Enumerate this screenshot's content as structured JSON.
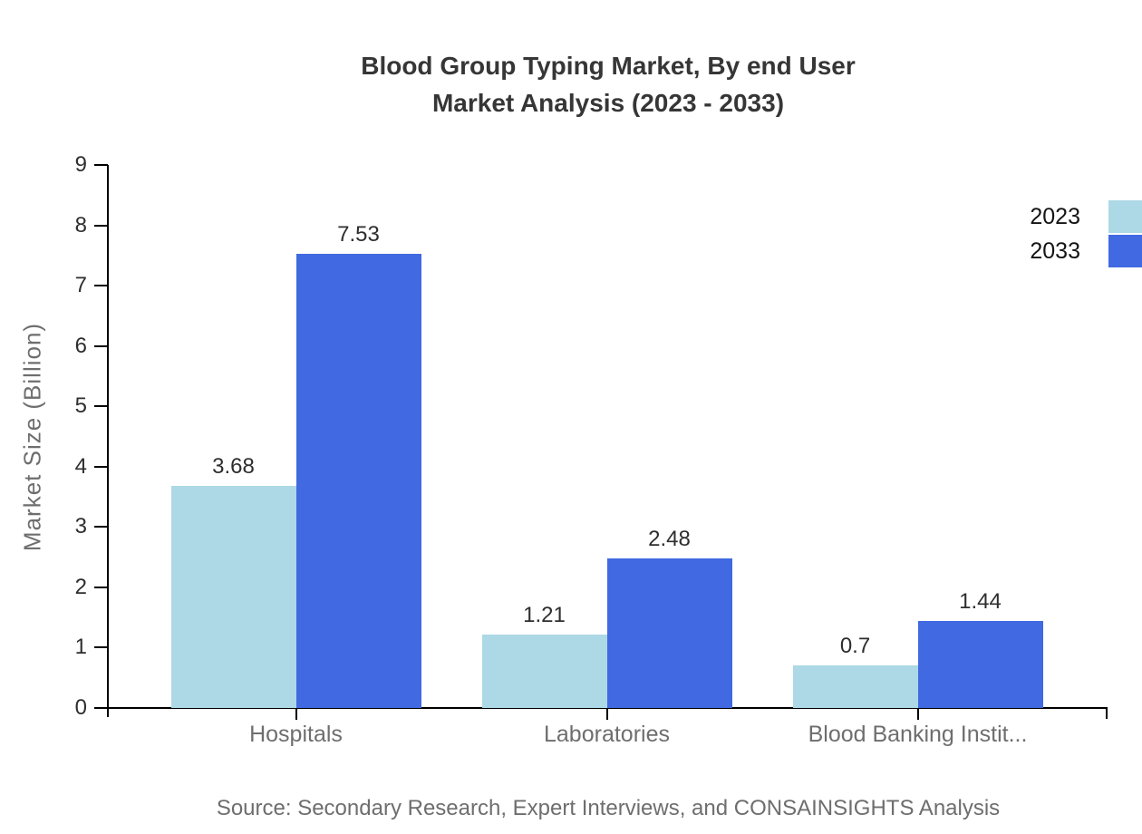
{
  "chart_data": {
    "type": "bar",
    "title_line1": "Blood Group Typing Market, By end User",
    "title_line2": "Market Analysis (2023 - 2033)",
    "categories": [
      "Hospitals",
      "Laboratories",
      "Blood Banking Instit..."
    ],
    "series": [
      {
        "name": "2023",
        "color": "#ADD8E6",
        "values": [
          3.68,
          1.21,
          0.7
        ]
      },
      {
        "name": "2033",
        "color": "#4169E1",
        "values": [
          7.53,
          2.48,
          1.44
        ]
      }
    ],
    "xlabel": "",
    "ylabel": "Market Size (Billion)",
    "ylim": [
      0,
      9
    ],
    "yticks": [
      0,
      1,
      2,
      3,
      4,
      5,
      6,
      7,
      8,
      9
    ],
    "grid": false,
    "legend_position": "top-right",
    "value_labels_shown": true,
    "source_note": "Source: Secondary Research, Expert Interviews, and CONSAINSIGHTS Analysis"
  }
}
